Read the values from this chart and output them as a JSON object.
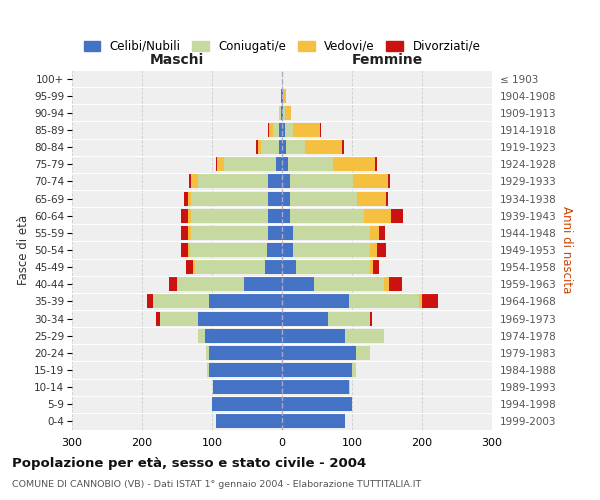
{
  "age_groups": [
    "0-4",
    "5-9",
    "10-14",
    "15-19",
    "20-24",
    "25-29",
    "30-34",
    "35-39",
    "40-44",
    "45-49",
    "50-54",
    "55-59",
    "60-64",
    "65-69",
    "70-74",
    "75-79",
    "80-84",
    "85-89",
    "90-94",
    "95-99",
    "100+"
  ],
  "birth_years": [
    "1999-2003",
    "1994-1998",
    "1989-1993",
    "1984-1988",
    "1979-1983",
    "1974-1978",
    "1969-1973",
    "1964-1968",
    "1959-1963",
    "1954-1958",
    "1949-1953",
    "1944-1948",
    "1939-1943",
    "1934-1938",
    "1929-1933",
    "1924-1928",
    "1919-1923",
    "1914-1918",
    "1909-1913",
    "1904-1908",
    "≤ 1903"
  ],
  "colors": {
    "celibe": "#4472c4",
    "coniugato": "#c5d9a0",
    "vedovo": "#f5c040",
    "divorziato": "#cc1111"
  },
  "maschi": {
    "celibe": [
      95,
      100,
      98,
      105,
      105,
      110,
      120,
      105,
      55,
      25,
      22,
      20,
      20,
      20,
      20,
      8,
      5,
      5,
      2,
      1,
      0
    ],
    "coniugato": [
      0,
      0,
      0,
      2,
      3,
      10,
      55,
      80,
      95,
      100,
      110,
      110,
      110,
      110,
      100,
      75,
      25,
      8,
      3,
      0,
      0
    ],
    "vedovo": [
      0,
      0,
      0,
      0,
      0,
      0,
      0,
      0,
      0,
      2,
      2,
      5,
      5,
      5,
      10,
      10,
      5,
      5,
      0,
      0,
      0
    ],
    "divorziato": [
      0,
      0,
      0,
      0,
      0,
      0,
      5,
      8,
      12,
      10,
      10,
      10,
      9,
      5,
      3,
      2,
      2,
      2,
      0,
      0,
      0
    ]
  },
  "femmine": {
    "nubile": [
      90,
      100,
      95,
      100,
      105,
      90,
      65,
      95,
      45,
      20,
      15,
      15,
      12,
      12,
      12,
      8,
      5,
      4,
      2,
      2,
      0
    ],
    "coniugata": [
      0,
      0,
      2,
      5,
      20,
      55,
      60,
      100,
      100,
      105,
      110,
      110,
      105,
      95,
      90,
      65,
      28,
      12,
      2,
      0,
      0
    ],
    "vedova": [
      0,
      0,
      0,
      0,
      0,
      0,
      0,
      5,
      8,
      5,
      10,
      13,
      38,
      42,
      50,
      60,
      52,
      38,
      9,
      4,
      0
    ],
    "divorziata": [
      0,
      0,
      0,
      0,
      0,
      0,
      4,
      23,
      18,
      9,
      13,
      9,
      18,
      2,
      2,
      2,
      4,
      2,
      0,
      0,
      0
    ]
  },
  "xlim": 300,
  "title": "Popolazione per età, sesso e stato civile - 2004",
  "subtitle": "COMUNE DI CANNOBIO (VB) - Dati ISTAT 1° gennaio 2004 - Elaborazione TUTTITALIA.IT",
  "xlabel_left": "Maschi",
  "xlabel_right": "Femmine",
  "ylabel_left": "Fasce di età",
  "ylabel_right": "Anni di nascita",
  "legend_labels": [
    "Celibi/Nubili",
    "Coniugati/e",
    "Vedovi/e",
    "Divorziati/e"
  ],
  "figsize": [
    6.0,
    5.0
  ],
  "dpi": 100
}
